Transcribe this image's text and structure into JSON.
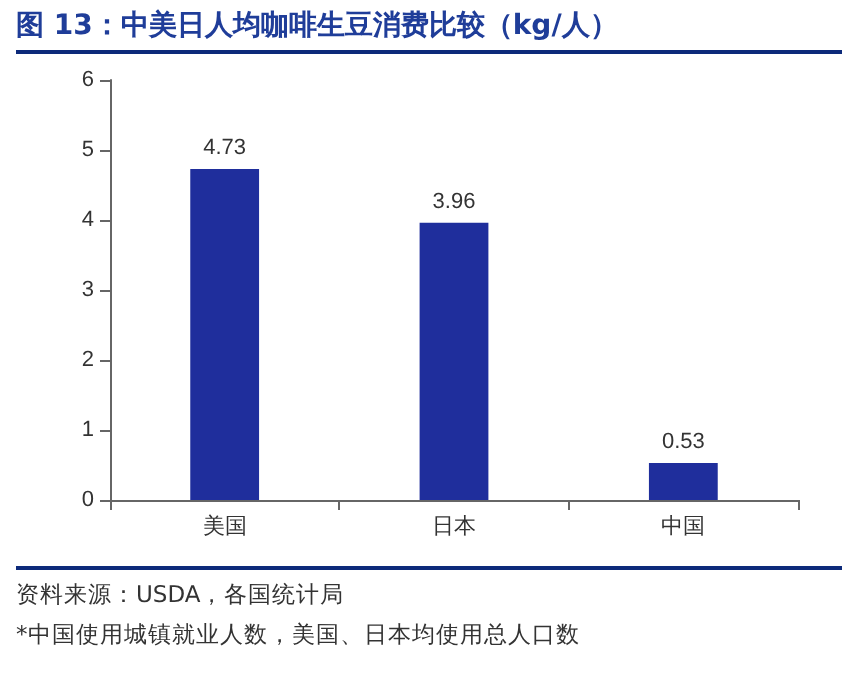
{
  "chart_data": {
    "type": "bar",
    "title": "图 13：中美日人均咖啡生豆消费比较（kg/人）",
    "categories": [
      "美国",
      "日本",
      "中国"
    ],
    "values": [
      4.73,
      3.96,
      0.53
    ],
    "color": "#1f2e9c",
    "ylim": [
      0,
      6
    ],
    "yticks": [
      0,
      1,
      2,
      3,
      4,
      5,
      6
    ],
    "grid": false,
    "data_labels": true,
    "annotations": [
      "资料来源：USDA，各国统计局",
      "*中国使用城镇就业人数，美国、日本均使用总人口数"
    ]
  }
}
